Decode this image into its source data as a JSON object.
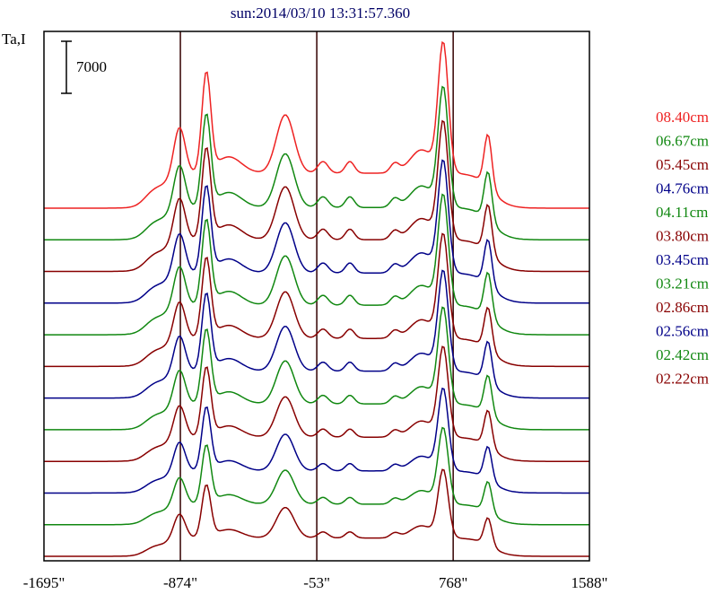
{
  "chart_data": {
    "type": "line",
    "title": "sun:2014/03/10 13:31:57.360",
    "ylabel": "Ta,I",
    "scale_bar_label": "7000",
    "x_ticks": [
      "-1695\"",
      "-874\"",
      "-53\"",
      "768\"",
      "1588\""
    ],
    "x_tick_values": [
      -1695,
      -874,
      -53,
      768,
      1588
    ],
    "xlim": [
      -1695,
      1588
    ],
    "vertical_lines_x": [
      -874,
      -53,
      768
    ],
    "series": [
      {
        "name": "08.40cm",
        "color": "#ee2222",
        "amplitude": 1.3
      },
      {
        "name": "06.67cm",
        "color": "#118811",
        "amplitude": 1.2
      },
      {
        "name": "05.45cm",
        "color": "#880000",
        "amplitude": 1.18
      },
      {
        "name": "04.76cm",
        "color": "#000088",
        "amplitude": 1.12
      },
      {
        "name": "04.11cm",
        "color": "#118811",
        "amplitude": 1.1
      },
      {
        "name": "03.80cm",
        "color": "#880000",
        "amplitude": 1.04
      },
      {
        "name": "03.45cm",
        "color": "#000088",
        "amplitude": 1.0
      },
      {
        "name": "03.21cm",
        "color": "#118811",
        "amplitude": 0.96
      },
      {
        "name": "02.86cm",
        "color": "#880000",
        "amplitude": 0.9
      },
      {
        "name": "02.56cm",
        "color": "#000088",
        "amplitude": 0.82
      },
      {
        "name": "02.42cm",
        "color": "#118811",
        "amplitude": 0.76
      },
      {
        "name": "02.22cm",
        "color": "#880000",
        "amplitude": 0.68
      }
    ]
  }
}
